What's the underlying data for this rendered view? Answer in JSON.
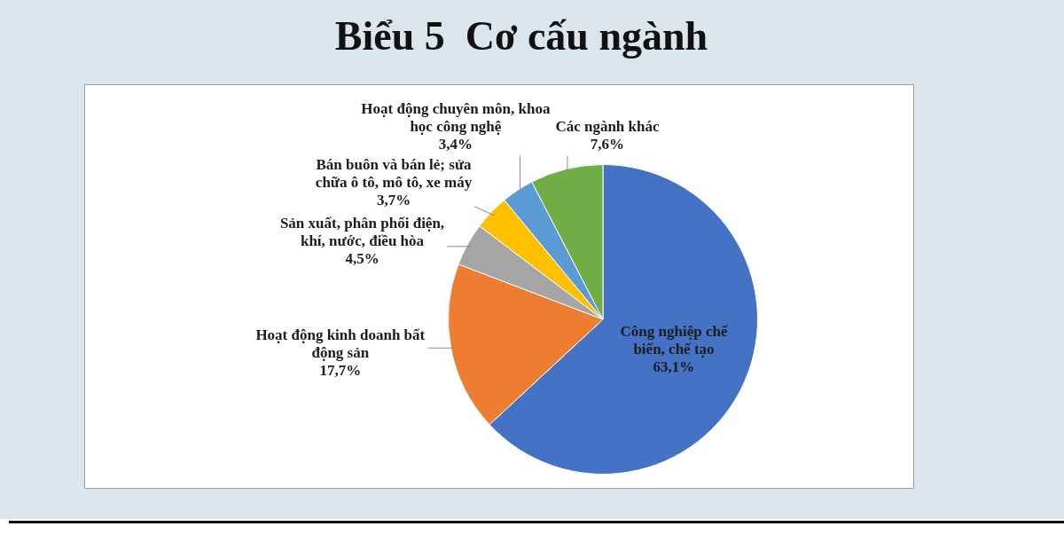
{
  "chart_data": {
    "type": "pie",
    "title": "Biểu 5  Cơ cấu ngành",
    "categories": [
      "Công nghiệp chế biến, chế tạo",
      "Hoạt động kinh doanh bất động sản",
      "Sản xuất, phân phối điện, khí, nước, điều hòa",
      "Bán buôn và bán lẻ; sửa chữa ô tô, mô tô, xe máy",
      "Hoạt động chuyên môn, khoa học công nghệ",
      "Các ngành khác"
    ],
    "values": [
      63.1,
      17.7,
      4.5,
      3.7,
      3.4,
      7.6
    ],
    "colors": [
      "#4472c4",
      "#ed7d31",
      "#a5a5a5",
      "#ffc000",
      "#5b9bd5",
      "#70ad47"
    ],
    "value_labels": [
      "63,1%",
      "17,7%",
      "4,5%",
      "3,7%",
      "3,4%",
      "7,6%"
    ]
  }
}
